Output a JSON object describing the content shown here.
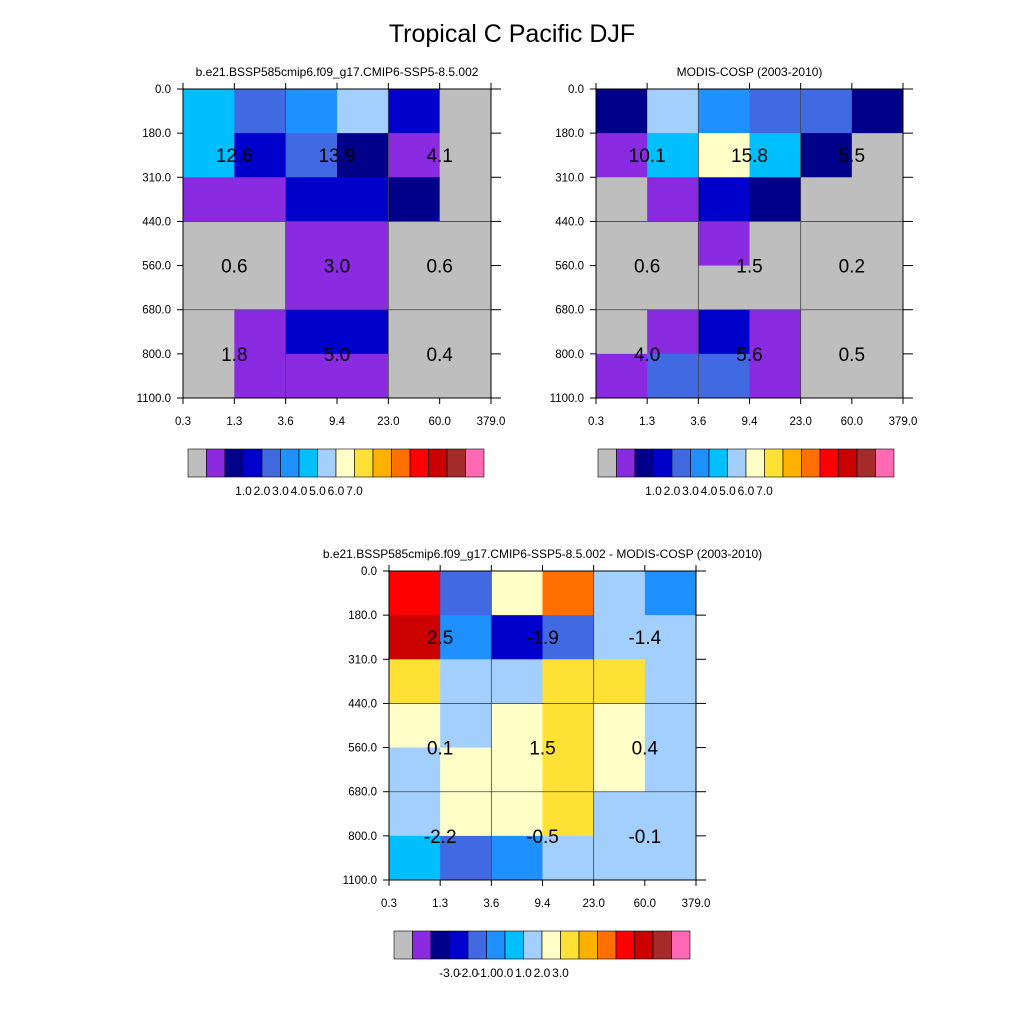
{
  "title": "Tropical C Pacific DJF",
  "chart_data": [
    {
      "type": "heatmap",
      "title": "b.e21.BSSP585cmip6.f09_g17.CMIP6-SSP5-8.5.002",
      "x_ticks": [
        "0.3",
        "1.3",
        "3.6",
        "9.4",
        "23.0",
        "60.0",
        "379.0"
      ],
      "y_ticks": [
        "0.0",
        "180.0",
        "310.0",
        "440.0",
        "560.0",
        "680.0",
        "800.0",
        "1100.0"
      ],
      "cell_colors": [
        [
          "#00BFFF",
          "#4169E1",
          "#1E90FF",
          "#A2CFFE",
          "#0000CD",
          "#BEBEBE"
        ],
        [
          "#00BFFF",
          "#0000CD",
          "#4169E1",
          "#00008B",
          "#8A2BE2",
          "#BEBEBE"
        ],
        [
          "#8A2BE2",
          "#8A2BE2",
          "#0000CD",
          "#0000CD",
          "#00008B",
          "#BEBEBE"
        ],
        [
          "#BEBEBE",
          "#BEBEBE",
          "#8A2BE2",
          "#8A2BE2",
          "#BEBEBE",
          "#BEBEBE"
        ],
        [
          "#BEBEBE",
          "#BEBEBE",
          "#8A2BE2",
          "#8A2BE2",
          "#BEBEBE",
          "#BEBEBE"
        ],
        [
          "#BEBEBE",
          "#8A2BE2",
          "#0000CD",
          "#0000CD",
          "#BEBEBE",
          "#BEBEBE"
        ],
        [
          "#BEBEBE",
          "#8A2BE2",
          "#8A2BE2",
          "#8A2BE2",
          "#BEBEBE",
          "#BEBEBE"
        ]
      ],
      "block_values": [
        [
          "12.6",
          "13.9",
          "4.1"
        ],
        [
          "0.6",
          "3.0",
          "0.6"
        ],
        [
          "1.8",
          "5.0",
          "0.4"
        ]
      ],
      "colorbar": {
        "colors": [
          "#BEBEBE",
          "#8A2BE2",
          "#00008B",
          "#0000CD",
          "#4169E1",
          "#1E90FF",
          "#00BFFF",
          "#A2CFFE",
          "#FFFFC8",
          "#FFE135",
          "#FFB000",
          "#FF7000",
          "#FF0000",
          "#CD0000",
          "#A52A2A",
          "#FF69B4"
        ],
        "labels": [
          "1.0",
          "2.0",
          "3.0",
          "4.0",
          "5.0",
          "6.0",
          "7.0"
        ]
      }
    },
    {
      "type": "heatmap",
      "title": "MODIS-COSP (2003-2010)",
      "x_ticks": [
        "0.3",
        "1.3",
        "3.6",
        "9.4",
        "23.0",
        "60.0",
        "379.0"
      ],
      "y_ticks": [
        "0.0",
        "180.0",
        "310.0",
        "440.0",
        "560.0",
        "680.0",
        "800.0",
        "1100.0"
      ],
      "cell_colors": [
        [
          "#00008B",
          "#A2CFFE",
          "#1E90FF",
          "#4169E1",
          "#4169E1",
          "#00008B"
        ],
        [
          "#8A2BE2",
          "#00BFFF",
          "#FFFFC8",
          "#00BFFF",
          "#00008B",
          "#BEBEBE"
        ],
        [
          "#BEBEBE",
          "#8A2BE2",
          "#0000CD",
          "#00008B",
          "#BEBEBE",
          "#BEBEBE"
        ],
        [
          "#BEBEBE",
          "#BEBEBE",
          "#8A2BE2",
          "#BEBEBE",
          "#BEBEBE",
          "#BEBEBE"
        ],
        [
          "#BEBEBE",
          "#BEBEBE",
          "#BEBEBE",
          "#BEBEBE",
          "#BEBEBE",
          "#BEBEBE"
        ],
        [
          "#BEBEBE",
          "#8A2BE2",
          "#0000CD",
          "#8A2BE2",
          "#BEBEBE",
          "#BEBEBE"
        ],
        [
          "#8A2BE2",
          "#4169E1",
          "#4169E1",
          "#8A2BE2",
          "#BEBEBE",
          "#BEBEBE"
        ]
      ],
      "block_values": [
        [
          "10.1",
          "15.8",
          "5.5"
        ],
        [
          "0.6",
          "1.5",
          "0.2"
        ],
        [
          "4.0",
          "5.6",
          "0.5"
        ]
      ],
      "colorbar": {
        "colors": [
          "#BEBEBE",
          "#8A2BE2",
          "#00008B",
          "#0000CD",
          "#4169E1",
          "#1E90FF",
          "#00BFFF",
          "#A2CFFE",
          "#FFFFC8",
          "#FFE135",
          "#FFB000",
          "#FF7000",
          "#FF0000",
          "#CD0000",
          "#A52A2A",
          "#FF69B4"
        ],
        "labels": [
          "1.0",
          "2.0",
          "3.0",
          "4.0",
          "5.0",
          "6.0",
          "7.0"
        ]
      }
    },
    {
      "type": "heatmap",
      "title": "b.e21.BSSP585cmip6.f09_g17.CMIP6-SSP5-8.5.002 - MODIS-COSP (2003-2010)",
      "x_ticks": [
        "0.3",
        "1.3",
        "3.6",
        "9.4",
        "23.0",
        "60.0",
        "379.0"
      ],
      "y_ticks": [
        "0.0",
        "180.0",
        "310.0",
        "440.0",
        "560.0",
        "680.0",
        "800.0",
        "1100.0"
      ],
      "cell_colors": [
        [
          "#FF0000",
          "#4169E1",
          "#FFFFC8",
          "#FF7000",
          "#A2CFFE",
          "#1E90FF"
        ],
        [
          "#CD0000",
          "#1E90FF",
          "#0000CD",
          "#4169E1",
          "#A2CFFE",
          "#A2CFFE"
        ],
        [
          "#FFE135",
          "#A2CFFE",
          "#A2CFFE",
          "#FFE135",
          "#FFE135",
          "#A2CFFE"
        ],
        [
          "#FFFFC8",
          "#A2CFFE",
          "#FFFFC8",
          "#FFE135",
          "#FFFFC8",
          "#A2CFFE"
        ],
        [
          "#A2CFFE",
          "#FFFFC8",
          "#FFFFC8",
          "#FFE135",
          "#FFFFC8",
          "#A2CFFE"
        ],
        [
          "#A2CFFE",
          "#FFFFC8",
          "#FFFFC8",
          "#FFE135",
          "#A2CFFE",
          "#A2CFFE"
        ],
        [
          "#00BFFF",
          "#4169E1",
          "#1E90FF",
          "#A2CFFE",
          "#A2CFFE",
          "#A2CFFE"
        ]
      ],
      "block_values": [
        [
          "2.5",
          "-1.9",
          "-1.4"
        ],
        [
          "0.1",
          "1.5",
          "0.4"
        ],
        [
          "-2.2",
          "-0.5",
          "-0.1"
        ]
      ],
      "colorbar": {
        "colors": [
          "#BEBEBE",
          "#8A2BE2",
          "#00008B",
          "#0000CD",
          "#4169E1",
          "#1E90FF",
          "#00BFFF",
          "#A2CFFE",
          "#FFFFC8",
          "#FFE135",
          "#FFB000",
          "#FF7000",
          "#FF0000",
          "#CD0000",
          "#A52A2A",
          "#FF69B4"
        ],
        "labels": [
          "-3.0",
          "-2.0",
          "-1.0",
          "0.0",
          "1.0",
          "2.0",
          "3.0"
        ]
      }
    }
  ]
}
